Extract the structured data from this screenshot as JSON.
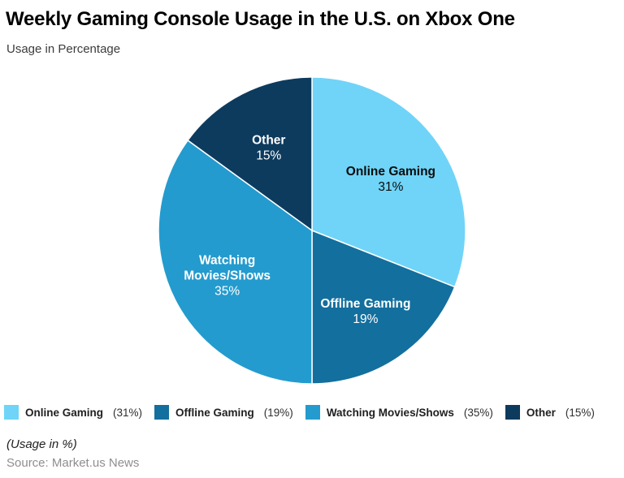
{
  "header": {
    "title": "Weekly Gaming Console Usage in the U.S. on Xbox One",
    "subtitle": "Usage in Percentage"
  },
  "chart_data": {
    "type": "pie",
    "title": "Weekly Gaming Console Usage in the U.S. on Xbox One",
    "subtitle": "Usage in Percentage",
    "unit": "%",
    "start_angle_deg": 0,
    "direction": "clockwise",
    "legend_position": "bottom",
    "slices": [
      {
        "name": "Online Gaming",
        "value": 31,
        "pct_label": "31%",
        "legend_pct": "(31%)",
        "color": "#6FD4F8",
        "label_lines": [
          "Online Gaming"
        ],
        "label_color": "#0B0B0B"
      },
      {
        "name": "Offline Gaming",
        "value": 19,
        "pct_label": "19%",
        "legend_pct": "(19%)",
        "color": "#136F9D",
        "label_lines": [
          "Offline Gaming"
        ],
        "label_color": "#FFFFFF"
      },
      {
        "name": "Watching Movies/Shows",
        "value": 35,
        "pct_label": "35%",
        "legend_pct": "(35%)",
        "color": "#249BCE",
        "label_lines": [
          "Watching",
          "Movies/Shows"
        ],
        "label_color": "#FFFFFF"
      },
      {
        "name": "Other",
        "value": 15,
        "pct_label": "15%",
        "legend_pct": "(15%)",
        "color": "#0D3B5E",
        "label_lines": [
          "Other"
        ],
        "label_color": "#FFFFFF"
      }
    ]
  },
  "footer": {
    "note": "(Usage in %)",
    "source": "Source: Market.us News"
  }
}
